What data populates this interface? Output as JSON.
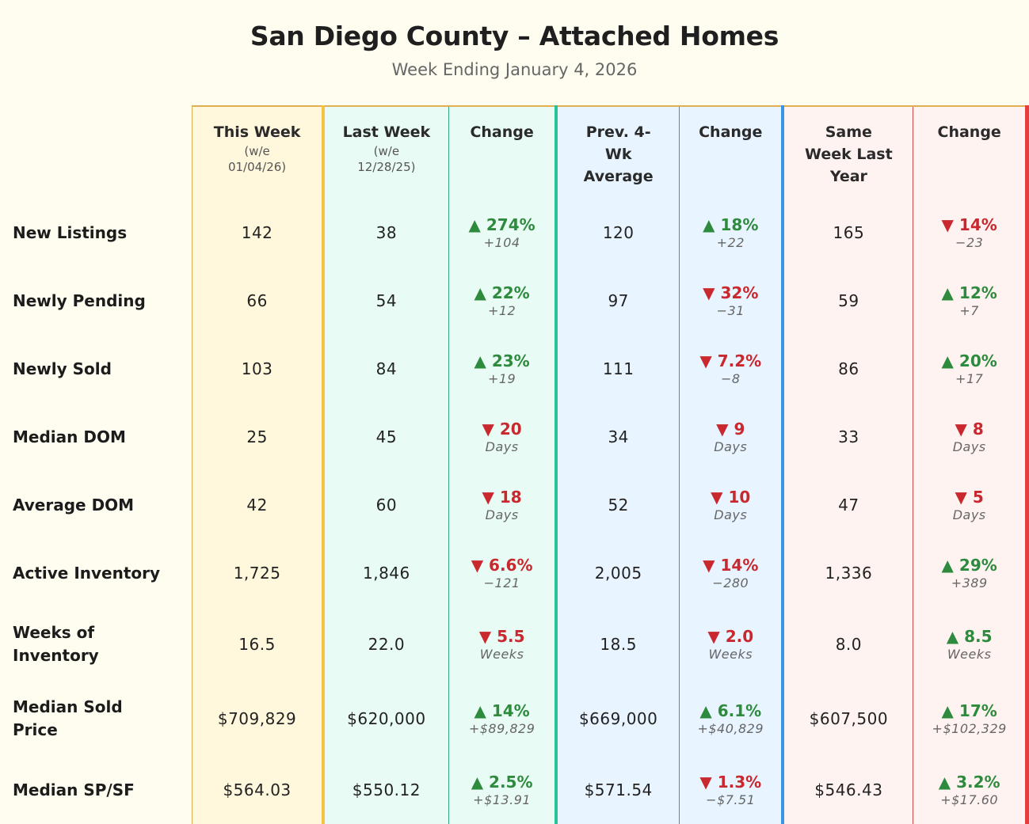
{
  "title": "San Diego County – Attached Homes",
  "subtitle": "Week Ending January 4, 2026",
  "colors": {
    "up": "#2e8b3e",
    "down": "#c8282e",
    "this_week": "#f5c542",
    "last_week": "#26c197",
    "prev_avg": "#3a94ec",
    "last_year": "#e53e3e"
  },
  "headers": [
    {
      "label": "This Week",
      "sub": "(w/e 01/04/26)"
    },
    {
      "label": "Last Week",
      "sub": "(w/e 12/28/25)"
    },
    {
      "label": "Change",
      "sub": ""
    },
    {
      "label": "Prev. 4-Wk Average",
      "sub": ""
    },
    {
      "label": "Change",
      "sub": ""
    },
    {
      "label": "Same Week Last Year",
      "sub": ""
    },
    {
      "label": "Change",
      "sub": ""
    }
  ],
  "rows": [
    {
      "label": "New Listings",
      "this": "142",
      "last": "38",
      "c1": {
        "dir": "up",
        "main": "274%",
        "detail": "+104"
      },
      "avg": "120",
      "c2": {
        "dir": "up",
        "main": "18%",
        "detail": "+22"
      },
      "ly": "165",
      "c3": {
        "dir": "down",
        "main": "14%",
        "detail": "−23"
      }
    },
    {
      "label": "Newly Pending",
      "this": "66",
      "last": "54",
      "c1": {
        "dir": "up",
        "main": "22%",
        "detail": "+12"
      },
      "avg": "97",
      "c2": {
        "dir": "down",
        "main": "32%",
        "detail": "−31"
      },
      "ly": "59",
      "c3": {
        "dir": "up",
        "main": "12%",
        "detail": "+7"
      }
    },
    {
      "label": "Newly Sold",
      "this": "103",
      "last": "84",
      "c1": {
        "dir": "up",
        "main": "23%",
        "detail": "+19"
      },
      "avg": "111",
      "c2": {
        "dir": "down",
        "main": "7.2%",
        "detail": "−8"
      },
      "ly": "86",
      "c3": {
        "dir": "up",
        "main": "20%",
        "detail": "+17"
      }
    },
    {
      "label": "Median DOM",
      "this": "25",
      "last": "45",
      "c1": {
        "dir": "down",
        "main": "20",
        "detail": "Days"
      },
      "avg": "34",
      "c2": {
        "dir": "down",
        "main": "9",
        "detail": "Days"
      },
      "ly": "33",
      "c3": {
        "dir": "down",
        "main": "8",
        "detail": "Days"
      }
    },
    {
      "label": "Average DOM",
      "this": "42",
      "last": "60",
      "c1": {
        "dir": "down",
        "main": "18",
        "detail": "Days"
      },
      "avg": "52",
      "c2": {
        "dir": "down",
        "main": "10",
        "detail": "Days"
      },
      "ly": "47",
      "c3": {
        "dir": "down",
        "main": "5",
        "detail": "Days"
      }
    },
    {
      "label": "Active Inventory",
      "this": "1,725",
      "last": "1,846",
      "c1": {
        "dir": "down",
        "main": "6.6%",
        "detail": "−121"
      },
      "avg": "2,005",
      "c2": {
        "dir": "down",
        "main": "14%",
        "detail": "−280"
      },
      "ly": "1,336",
      "c3": {
        "dir": "up",
        "main": "29%",
        "detail": "+389"
      }
    },
    {
      "label": "Weeks of Inventory",
      "this": "16.5",
      "last": "22.0",
      "c1": {
        "dir": "down",
        "main": "5.5",
        "detail": "Weeks"
      },
      "avg": "18.5",
      "c2": {
        "dir": "down",
        "main": "2.0",
        "detail": "Weeks"
      },
      "ly": "8.0",
      "c3": {
        "dir": "up",
        "main": "8.5",
        "detail": "Weeks"
      }
    },
    {
      "label": "Median Sold Price",
      "this": "$709,829",
      "last": "$620,000",
      "c1": {
        "dir": "up",
        "main": "14%",
        "detail": "+$89,829"
      },
      "avg": "$669,000",
      "c2": {
        "dir": "up",
        "main": "6.1%",
        "detail": "+$40,829"
      },
      "ly": "$607,500",
      "c3": {
        "dir": "up",
        "main": "17%",
        "detail": "+$102,329"
      }
    },
    {
      "label": "Median SP/SF",
      "this": "$564.03",
      "last": "$550.12",
      "c1": {
        "dir": "up",
        "main": "2.5%",
        "detail": "+$13.91"
      },
      "avg": "$571.54",
      "c2": {
        "dir": "down",
        "main": "1.3%",
        "detail": "−$7.51"
      },
      "ly": "$546.43",
      "c3": {
        "dir": "up",
        "main": "3.2%",
        "detail": "+$17.60"
      }
    }
  ]
}
